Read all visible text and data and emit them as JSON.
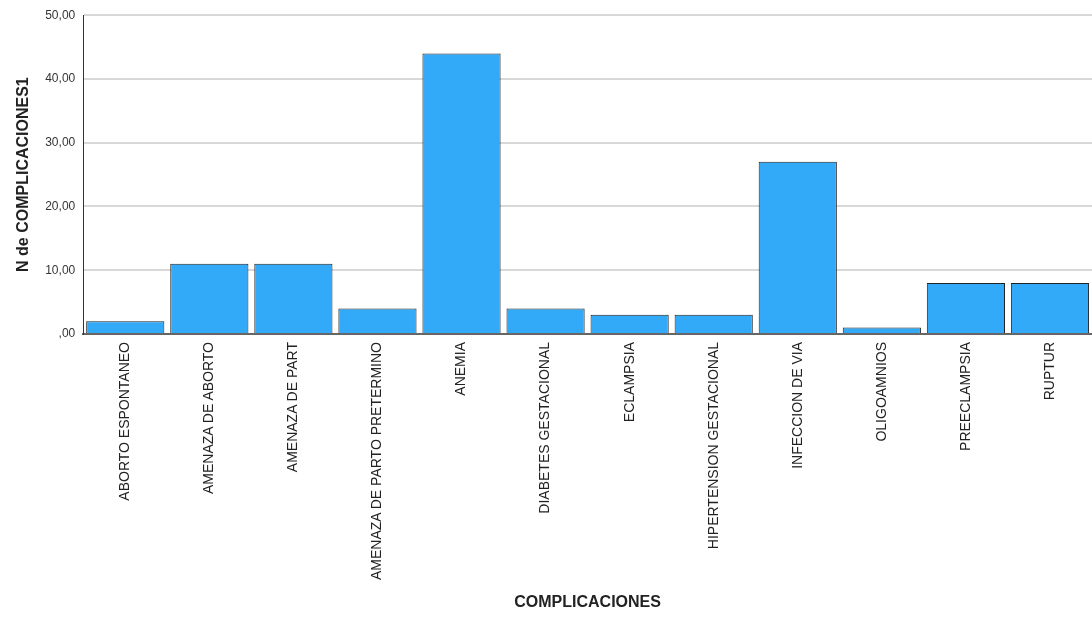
{
  "chart_data": {
    "type": "bar",
    "xlabel": "COMPLICACIONES",
    "ylabel": "N de COMPLICACIONES1",
    "categories": [
      "ABORTO ESPONTANEO",
      "AMENAZA DE ABORTO",
      "AMENAZA DE PART",
      "AMENAZA DE PARTO PRETERMINO",
      "ANEMIA",
      "DIABETES GESTACIONAL",
      "ECLAMPSIA",
      "HIPERTENSION GESTACIONAL",
      "INFECCION DE VIA",
      "OLIGOAMNIOS",
      "PREECLAMPSIA",
      "RUPTUR"
    ],
    "values": [
      2,
      11,
      11,
      4,
      44,
      4,
      3,
      3,
      27,
      1,
      8,
      8
    ],
    "color": "#33aaf8",
    "ylim": [
      0,
      50
    ],
    "yticks": [
      {
        "value": 0,
        "label": ",00"
      },
      {
        "value": 10,
        "label": "10,00"
      },
      {
        "value": 20,
        "label": "20,00"
      },
      {
        "value": 30,
        "label": "30,00"
      },
      {
        "value": 40,
        "label": "40,00"
      },
      {
        "value": 50,
        "label": "50,00"
      }
    ],
    "grid": "y",
    "legend": false
  }
}
